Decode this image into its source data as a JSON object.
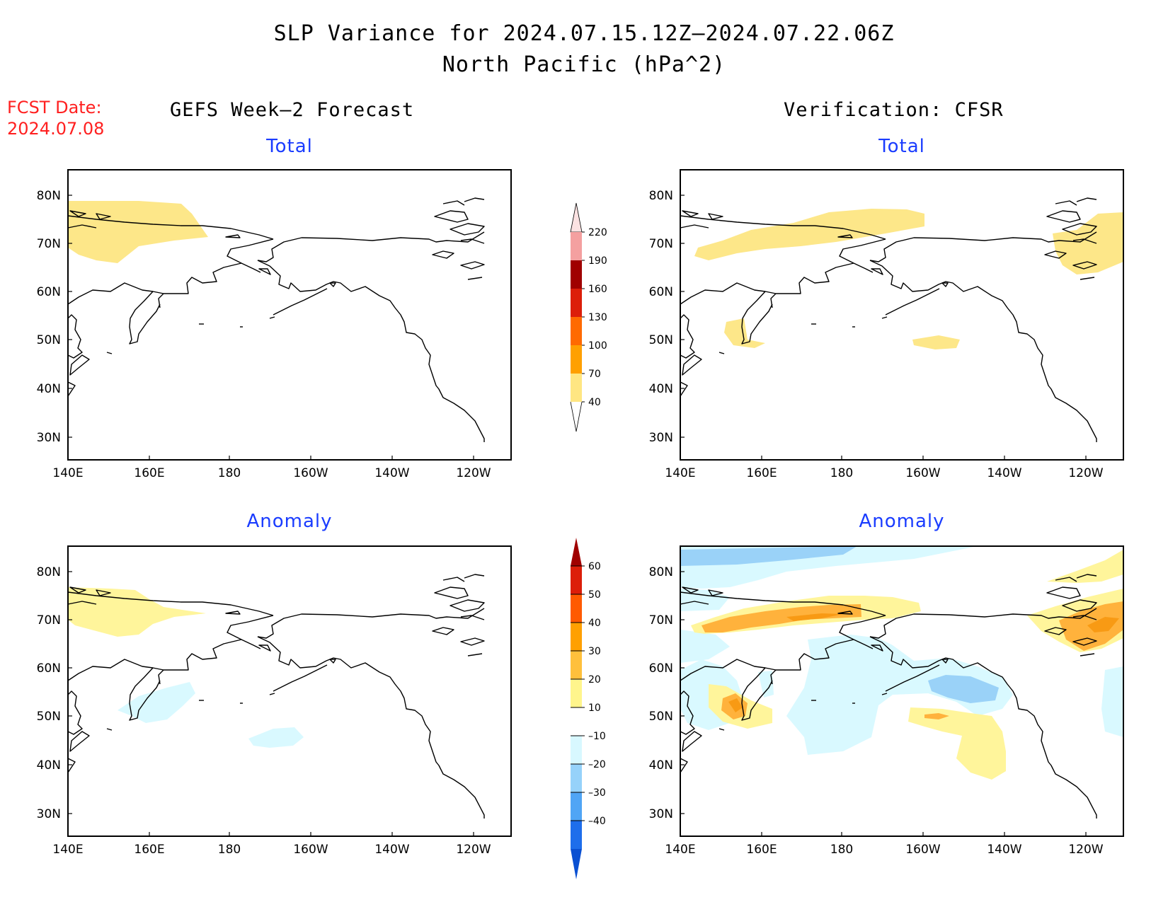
{
  "header": {
    "title_line1": "SLP Variance for 2024.07.15.12Z–2024.07.22.06Z",
    "title_line2": "North Pacific (hPa^2)",
    "fcst_label": "FCST Date:",
    "fcst_date": "2024.07.08",
    "left_column_title": "GEFS Week–2 Forecast",
    "right_column_title": "Verification: CFSR"
  },
  "panels": {
    "top_left_title": "Total",
    "top_right_title": "Total",
    "bottom_left_title": "Anomaly",
    "bottom_right_title": "Anomaly"
  },
  "axes": {
    "lat_labels": [
      "80N",
      "70N",
      "60N",
      "50N",
      "40N",
      "30N"
    ],
    "lon_labels": [
      "140E",
      "160E",
      "180",
      "160W",
      "140W",
      "120W"
    ]
  },
  "total_colorbar": {
    "labels": [
      "220",
      "190",
      "160",
      "130",
      "100",
      "70",
      "40"
    ],
    "colors": [
      "#fbe2e2",
      "#f4a0a0",
      "#a00000",
      "#dc1e0a",
      "#ff6a00",
      "#ffa000",
      "#ffe682"
    ]
  },
  "anomaly_colorbar": {
    "labels": [
      "60",
      "50",
      "40",
      "30",
      "20",
      "10",
      "–10",
      "–20",
      "–30",
      "–40"
    ],
    "colors": [
      "#a00000",
      "#dc1e0a",
      "#ff5a00",
      "#ffa000",
      "#ffc03c",
      "#fff58c",
      "#ffffff",
      "#d8f8ff",
      "#96d2fa",
      "#50a5f5",
      "#1e6eeb",
      "#0a50d2"
    ]
  },
  "colors": {
    "fcst_text": "#ff2020",
    "panel_title": "#1a3cff",
    "yellow": "#fde789",
    "yellow_light": "#fff59b",
    "orange": "#ffb23c",
    "orange_dark": "#f89a14",
    "cyan_light": "#d9f9ff",
    "blue_light": "#9ad2f8"
  }
}
